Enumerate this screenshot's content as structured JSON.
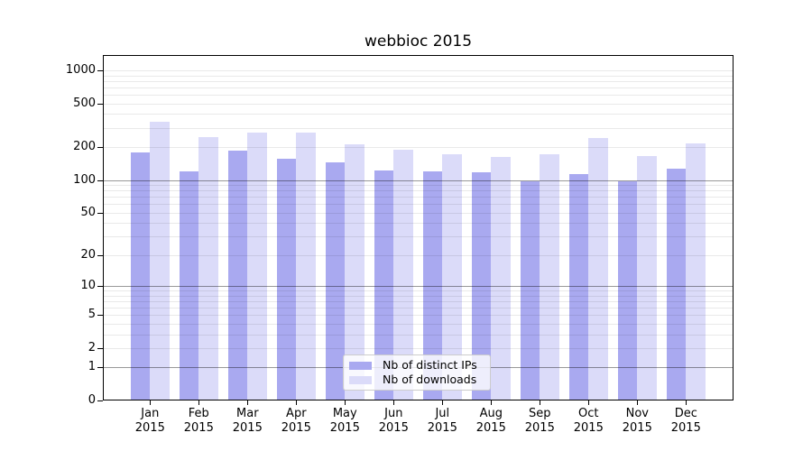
{
  "chart_data": {
    "type": "bar",
    "title": "webbioc 2015",
    "categories": [
      "Jan",
      "Feb",
      "Mar",
      "Apr",
      "May",
      "Jun",
      "Jul",
      "Aug",
      "Sep",
      "Oct",
      "Nov",
      "Dec"
    ],
    "year_label": "2015",
    "series": [
      {
        "name": "Nb of distinct IPs",
        "color": "#a9a9f0",
        "values": [
          178,
          120,
          185,
          155,
          144,
          122,
          120,
          118,
          98,
          114,
          98,
          126
        ]
      },
      {
        "name": "Nb of downloads",
        "color": "#dbdbf9",
        "values": [
          338,
          249,
          273,
          272,
          213,
          190,
          173,
          164,
          173,
          244,
          167,
          216
        ]
      }
    ],
    "y_ticks": [
      1000,
      500,
      200,
      100,
      50,
      20,
      10,
      5,
      2,
      1,
      0
    ],
    "ylim": [
      0,
      1400
    ],
    "xlabel": "",
    "ylabel": "",
    "scale": "log10(1+x)",
    "grid": true,
    "legend_position": "inside-lower-center"
  }
}
